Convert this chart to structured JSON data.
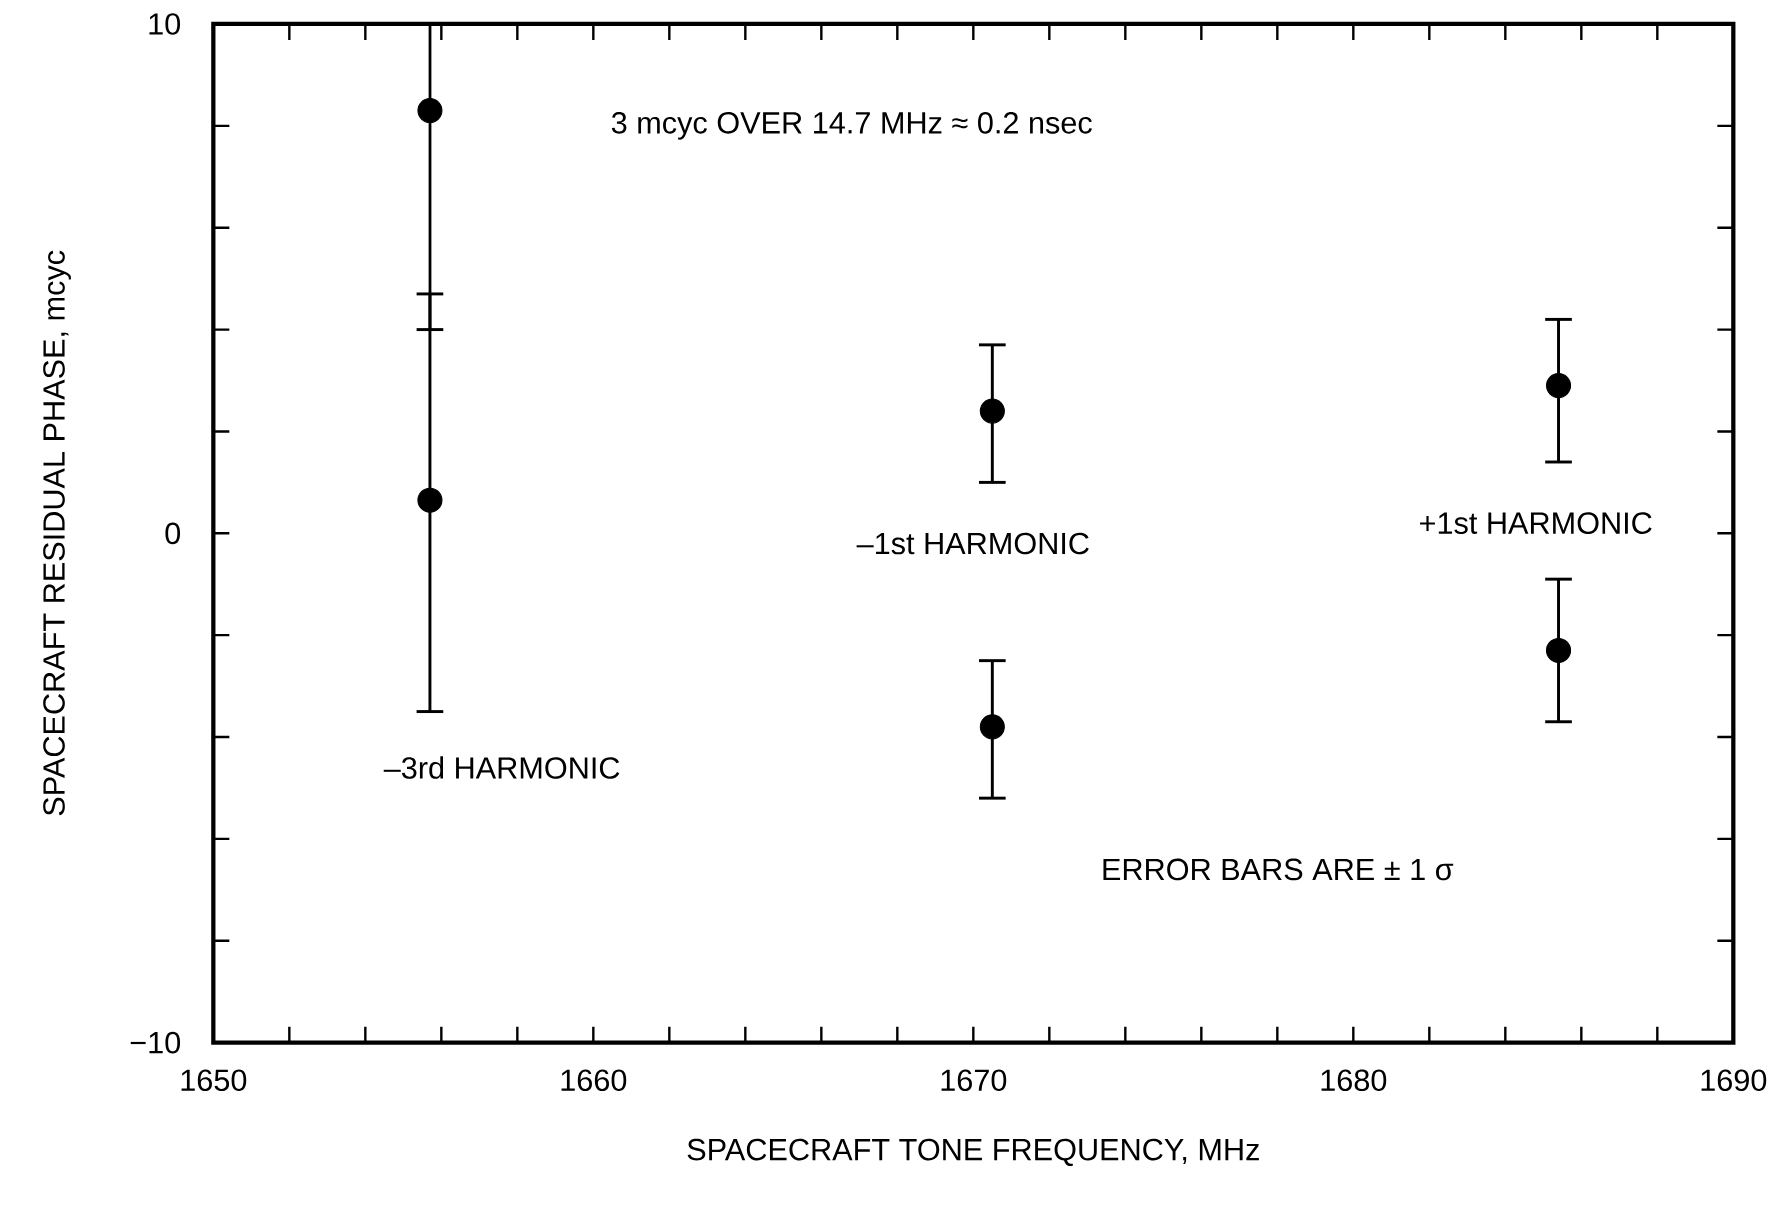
{
  "chart_data": {
    "type": "scatter",
    "xlabel": "SPACECRAFT TONE FREQUENCY, MHz",
    "ylabel": "SPACECRAFT RESIDUAL PHASE, mcyc",
    "x": [
      1655.7,
      1655.7,
      1670.5,
      1670.5,
      1685.4,
      1685.4
    ],
    "series": [
      {
        "color": "#000000",
        "values": [
          8.3,
          0.65,
          2.4,
          -3.8,
          2.9,
          -2.3
        ],
        "errors": [
          [
            4.0,
            10
          ],
          [
            -3.5,
            4.7
          ],
          [
            1.0,
            3.7
          ],
          [
            -5.2,
            -2.5
          ],
          [
            1.4,
            4.2
          ],
          [
            -3.7,
            -0.9
          ]
        ]
      }
    ],
    "marker": "circle",
    "grid": false,
    "xlim": [
      1650,
      1690
    ],
    "ylim": [
      -10,
      10
    ],
    "xticks": [
      1650,
      {
        "value": 1652,
        "label": null
      },
      {
        "value": 1654,
        "label": null
      },
      {
        "value": 1656,
        "label": null
      },
      {
        "value": 1658,
        "label": null
      },
      1660,
      {
        "value": 1662,
        "label": null
      },
      {
        "value": 1664,
        "label": null
      },
      {
        "value": 1666,
        "label": null
      },
      {
        "value": 1668,
        "label": null
      },
      1670,
      {
        "value": 1672,
        "label": null
      },
      {
        "value": 1674,
        "label": null
      },
      {
        "value": 1676,
        "label": null
      },
      {
        "value": 1678,
        "label": null
      },
      1680,
      {
        "value": 1682,
        "label": null
      },
      {
        "value": 1684,
        "label": null
      },
      {
        "value": 1686,
        "label": null
      },
      {
        "value": 1688,
        "label": null
      },
      1690
    ],
    "yticks": [
      {
        "value": -10,
        "label": "−10"
      },
      {
        "value": -8,
        "label": null
      },
      {
        "value": -6,
        "label": null
      },
      {
        "value": -4,
        "label": null
      },
      {
        "value": -2,
        "label": null
      },
      0,
      {
        "value": 2,
        "label": null
      },
      {
        "value": 4,
        "label": null
      },
      {
        "value": 6,
        "label": null
      },
      {
        "value": 8,
        "label": null
      },
      10
    ],
    "annotations": [
      "3 mcyc OVER 14.7 MHz ≈ 0.2 nsec",
      "–3rd HARMONIC",
      "–1st HARMONIC",
      "+1st HARMONIC",
      "ERROR BARS ARE ± 1 σ"
    ]
  }
}
